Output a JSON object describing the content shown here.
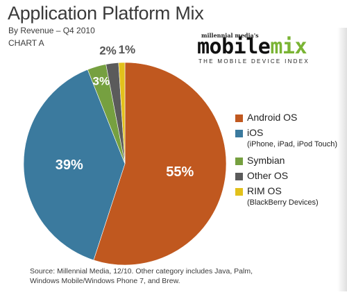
{
  "header": {
    "title": "Application Platform Mix",
    "subtitle": "By Revenue – Q4 2010",
    "chart_label": "CHART A"
  },
  "logo": {
    "small": "millennial media's",
    "word_black": "mobile",
    "word_green": "mix",
    "tagline": "THE MOBILE DEVICE INDEX"
  },
  "legend": [
    {
      "label": "Android OS",
      "sub": "",
      "color": "#c0581f"
    },
    {
      "label": "iOS",
      "sub": "(iPhone, iPad, iPod Touch)",
      "color": "#3b7a9e"
    },
    {
      "label": "Symbian",
      "sub": "",
      "color": "#76a040"
    },
    {
      "label": "Other OS",
      "sub": "",
      "color": "#5b5b5b"
    },
    {
      "label": "RIM OS",
      "sub": "(BlackBerry Devices)",
      "color": "#e2c11b"
    }
  ],
  "source": {
    "line1": "Source: Millennial Media, 12/10. Other category includes Java, Palm,",
    "line2": "Windows Mobile/Windows Phone 7, and Brew."
  },
  "chart_data": {
    "type": "pie",
    "title": "Application Platform Mix",
    "subtitle": "By Revenue – Q4 2010",
    "unit": "%",
    "slices": [
      {
        "name": "Android OS",
        "value": 55,
        "label": "55%",
        "color": "#c0581f"
      },
      {
        "name": "iOS",
        "value": 39,
        "label": "39%",
        "color": "#3b7a9e"
      },
      {
        "name": "Symbian",
        "value": 3,
        "label": "3%",
        "color": "#76a040"
      },
      {
        "name": "Other OS",
        "value": 2,
        "label": "2%",
        "color": "#5b5b5b"
      },
      {
        "name": "RIM OS",
        "value": 1,
        "label": "1%",
        "color": "#e2c11b"
      }
    ],
    "legend_position": "right",
    "start": "12 o'clock, clockwise from Android OS"
  }
}
